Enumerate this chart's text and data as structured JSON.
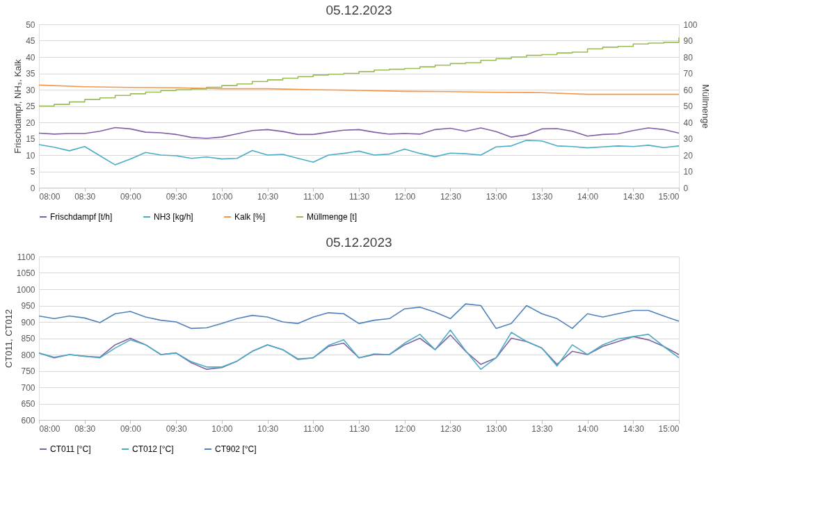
{
  "chart_data": [
    {
      "type": "line",
      "title": "05.12.2023",
      "ylabel": "Frischdampf, NH₃, Kalk",
      "y2label": "Müllmenge",
      "x": [
        8.0,
        8.1667,
        8.3333,
        8.5,
        8.6667,
        8.8333,
        9.0,
        9.1667,
        9.3333,
        9.5,
        9.6667,
        9.8333,
        10.0,
        10.1667,
        10.3333,
        10.5,
        10.6667,
        10.8333,
        11.0,
        11.1667,
        11.3333,
        11.5,
        11.6667,
        11.8333,
        12.0,
        12.1667,
        12.3333,
        12.5,
        12.6667,
        12.8333,
        13.0,
        13.1667,
        13.3333,
        13.5,
        13.6667,
        13.8333,
        14.0,
        14.1667,
        14.3333,
        14.5,
        14.6667,
        14.8333,
        15.0
      ],
      "xlim": [
        8,
        15
      ],
      "xticks": [
        {
          "value": 8,
          "label": "08:00"
        },
        {
          "value": 8.5,
          "label": "08:30"
        },
        {
          "value": 9,
          "label": "09:00"
        },
        {
          "value": 9.5,
          "label": "09:30"
        },
        {
          "value": 10,
          "label": "10:00"
        },
        {
          "value": 10.5,
          "label": "10:30"
        },
        {
          "value": 11,
          "label": "11:00"
        },
        {
          "value": 11.5,
          "label": "11:30"
        },
        {
          "value": 12,
          "label": "12:00"
        },
        {
          "value": 12.5,
          "label": "12:30"
        },
        {
          "value": 13,
          "label": "13:00"
        },
        {
          "value": 13.5,
          "label": "13:30"
        },
        {
          "value": 14,
          "label": "14:00"
        },
        {
          "value": 14.5,
          "label": "14:30"
        },
        {
          "value": 15,
          "label": "15:00"
        }
      ],
      "ylim": [
        0,
        50
      ],
      "yticks": [
        0,
        5,
        10,
        15,
        20,
        25,
        30,
        35,
        40,
        45,
        50
      ],
      "y2lim": [
        0,
        100
      ],
      "y2ticks": [
        0,
        10,
        20,
        30,
        40,
        50,
        60,
        70,
        80,
        90,
        100
      ],
      "grid": "y",
      "legend": "bottom",
      "series": [
        {
          "name": "Frischdampf [t/h]",
          "color": "#7f5fa6",
          "values": [
            16.7,
            16.4,
            16.6,
            16.6,
            17.3,
            18.4,
            18.0,
            17.0,
            16.8,
            16.3,
            15.4,
            15.1,
            15.5,
            16.5,
            17.5,
            17.8,
            17.2,
            16.3,
            16.3,
            17.0,
            17.6,
            17.8,
            17.0,
            16.4,
            16.6,
            16.4,
            17.8,
            18.2,
            17.3,
            18.3,
            17.2,
            15.5,
            16.2,
            18.0,
            18.1,
            17.3,
            15.8,
            16.3,
            16.5,
            17.5,
            18.3,
            17.8,
            16.7
          ]
        },
        {
          "name": "NH3 [kg/h]",
          "color": "#4bacc6",
          "values": [
            13.2,
            12.4,
            11.3,
            12.6,
            9.8,
            7.0,
            8.8,
            10.8,
            10.0,
            9.8,
            9.0,
            9.4,
            8.8,
            9.0,
            11.4,
            10.0,
            10.2,
            9.0,
            7.8,
            10.0,
            10.5,
            11.2,
            10.0,
            10.3,
            11.8,
            10.5,
            9.5,
            10.6,
            10.4,
            10.0,
            12.5,
            12.8,
            14.5,
            14.3,
            12.8,
            12.6,
            12.2,
            12.5,
            12.8,
            12.6,
            13.0,
            12.3,
            12.8
          ]
        },
        {
          "name": "Kalk [%]",
          "color": "#f79646",
          "x": [
            8.0,
            8.5,
            9.0,
            9.5,
            10.0,
            10.5,
            11.0,
            11.5,
            12.0,
            12.5,
            13.0,
            13.5,
            14.0,
            14.5,
            15.0
          ],
          "values": [
            31.4,
            30.9,
            30.7,
            30.6,
            30.3,
            30.3,
            30.0,
            29.8,
            29.5,
            29.4,
            29.2,
            29.1,
            28.6,
            28.6,
            28.6
          ]
        },
        {
          "name": "Müllmenge [t]",
          "color": "#9bbb59",
          "type": "step",
          "axis": "y2",
          "values": [
            50,
            51,
            52.5,
            54,
            55,
            56.5,
            57.5,
            58.5,
            59.5,
            60,
            60.5,
            61.5,
            62.5,
            63.5,
            65,
            66,
            67,
            68,
            69,
            69.5,
            70,
            71,
            72,
            72.5,
            73,
            74,
            75,
            76,
            76.5,
            78,
            79,
            80,
            81,
            81.5,
            82.5,
            83,
            85,
            86,
            86.5,
            88,
            88.5,
            89,
            92
          ]
        }
      ]
    },
    {
      "type": "line",
      "title": "05.12.2023",
      "ylabel": "CT011, CT012",
      "x": [
        8.0,
        8.1667,
        8.3333,
        8.5,
        8.6667,
        8.8333,
        9.0,
        9.1667,
        9.3333,
        9.5,
        9.6667,
        9.8333,
        10.0,
        10.1667,
        10.3333,
        10.5,
        10.6667,
        10.8333,
        11.0,
        11.1667,
        11.3333,
        11.5,
        11.6667,
        11.8333,
        12.0,
        12.1667,
        12.3333,
        12.5,
        12.6667,
        12.8333,
        13.0,
        13.1667,
        13.3333,
        13.5,
        13.6667,
        13.8333,
        14.0,
        14.1667,
        14.3333,
        14.5,
        14.6667,
        14.8333,
        15.0
      ],
      "xlim": [
        8,
        15
      ],
      "xticks": [
        {
          "value": 8,
          "label": "08:00"
        },
        {
          "value": 8.5,
          "label": "08:30"
        },
        {
          "value": 9,
          "label": "09:00"
        },
        {
          "value": 9.5,
          "label": "09:30"
        },
        {
          "value": 10,
          "label": "10:00"
        },
        {
          "value": 10.5,
          "label": "10:30"
        },
        {
          "value": 11,
          "label": "11:00"
        },
        {
          "value": 11.5,
          "label": "11:30"
        },
        {
          "value": 12,
          "label": "12:00"
        },
        {
          "value": 12.5,
          "label": "12:30"
        },
        {
          "value": 13,
          "label": "13:00"
        },
        {
          "value": 13.5,
          "label": "13:30"
        },
        {
          "value": 14,
          "label": "14:00"
        },
        {
          "value": 14.5,
          "label": "14:30"
        },
        {
          "value": 15,
          "label": "15:00"
        }
      ],
      "ylim": [
        600,
        1100
      ],
      "yticks": [
        600,
        650,
        700,
        750,
        800,
        850,
        900,
        950,
        1000,
        1050,
        1100
      ],
      "grid": "y",
      "legend": "bottom",
      "series": [
        {
          "name": "CT011 [°C]",
          "color": "#8064a2",
          "values": [
            805,
            790,
            800,
            795,
            792,
            830,
            850,
            830,
            800,
            805,
            775,
            755,
            760,
            780,
            810,
            830,
            815,
            785,
            790,
            825,
            835,
            790,
            800,
            800,
            830,
            850,
            815,
            860,
            810,
            770,
            790,
            850,
            840,
            820,
            770,
            810,
            800,
            825,
            840,
            855,
            845,
            825,
            800
          ]
        },
        {
          "name": "CT012 [°C]",
          "color": "#4bacc6",
          "values": [
            805,
            792,
            800,
            795,
            790,
            820,
            845,
            830,
            800,
            805,
            778,
            762,
            762,
            780,
            810,
            830,
            815,
            787,
            790,
            828,
            845,
            790,
            802,
            800,
            835,
            862,
            815,
            875,
            812,
            755,
            790,
            868,
            840,
            820,
            765,
            830,
            800,
            830,
            848,
            855,
            862,
            825,
            790
          ]
        },
        {
          "name": "CT902 [°C]",
          "color": "#4f81bd",
          "values": [
            918,
            910,
            918,
            912,
            898,
            925,
            932,
            915,
            905,
            900,
            880,
            882,
            895,
            910,
            920,
            915,
            900,
            895,
            915,
            928,
            925,
            895,
            905,
            910,
            940,
            945,
            930,
            910,
            955,
            950,
            880,
            895,
            950,
            925,
            910,
            880,
            925,
            915,
            925,
            935,
            935,
            918,
            902
          ]
        }
      ]
    }
  ]
}
